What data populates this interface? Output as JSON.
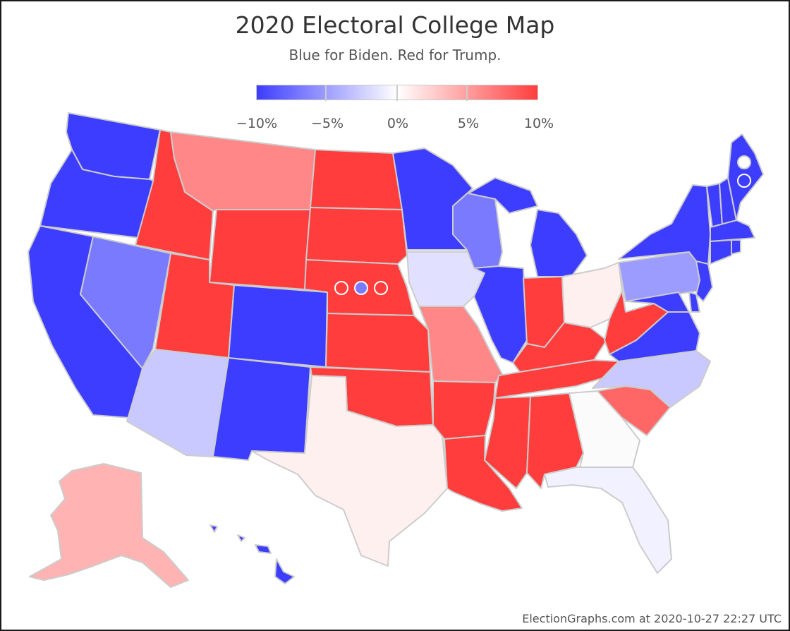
{
  "header": {
    "title": "2020 Electoral College Map",
    "subtitle": "Blue for Biden. Red for Trump."
  },
  "legend": {
    "ticks": [
      "−10%",
      "−5%",
      "0%",
      "5%",
      "10%"
    ],
    "colors": {
      "biden_strong": "#3d3dff",
      "neutral": "#ffffff",
      "trump_strong": "#ff3d3d"
    }
  },
  "colors": {
    "biden_10": "#3d3dff",
    "biden_7": "#7a7aff",
    "biden_4": "#9c9cff",
    "biden_2": "#c9c9ff",
    "biden_1": "#e1e1ff",
    "biden_05": "#f1f1ff",
    "tossup": "#fbfbfb",
    "trump_05": "#fff0f0",
    "trump_2": "#ffb3b3",
    "trump_4": "#ff9a9a",
    "trump_6": "#ff8787",
    "trump_8": "#ff6666",
    "trump_10": "#ff3d3d"
  },
  "footer": {
    "credit": "ElectionGraphs.com at 2020-10-27 22:27 UTC"
  }
}
